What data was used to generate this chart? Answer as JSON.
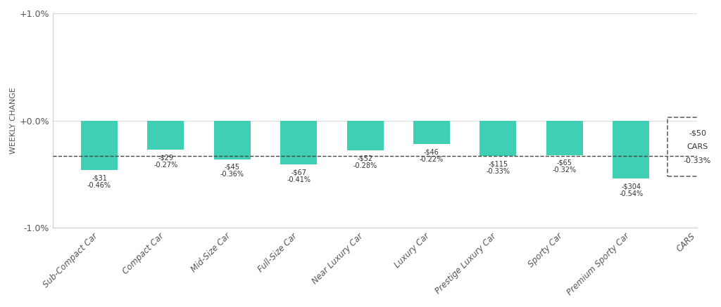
{
  "categories": [
    "Sub-Compact Car",
    "Compact Car",
    "Mid-Size Car",
    "Full-Size Car",
    "Near Luxury Car",
    "Luxury Car",
    "Prestige Luxury Car",
    "Sporty Car",
    "Premium Sporty Car",
    "CARS"
  ],
  "values": [
    -0.46,
    -0.27,
    -0.36,
    -0.41,
    -0.28,
    -0.22,
    -0.33,
    -0.32,
    -0.54,
    -0.33
  ],
  "dollar_labels": [
    "-$31",
    "-$29",
    "-$45",
    "-$67",
    "-$52",
    "-$46",
    "-$115",
    "-$65",
    "-$304",
    "-$50"
  ],
  "pct_labels": [
    "-0.46%",
    "-0.27%",
    "-0.36%",
    "-0.41%",
    "-0.28%",
    "-0.22%",
    "-0.33%",
    "-0.32%",
    "-0.54%",
    "-0.33%"
  ],
  "bar_color": "#3ecfb4",
  "dashed_line_y": -0.33,
  "ylim": [
    -1.0,
    1.0
  ],
  "yticks": [
    -1.0,
    0.0,
    1.0
  ],
  "ytick_labels": [
    "-1.0%",
    "+0.0%",
    "+1.0%"
  ],
  "ylabel": "WEEKLY CHANGE",
  "background_color": "#ffffff",
  "bar_width": 0.55,
  "cars_label_dollar": "-$50",
  "cars_label_text": "CARS",
  "cars_label_pct": "-0.33%"
}
